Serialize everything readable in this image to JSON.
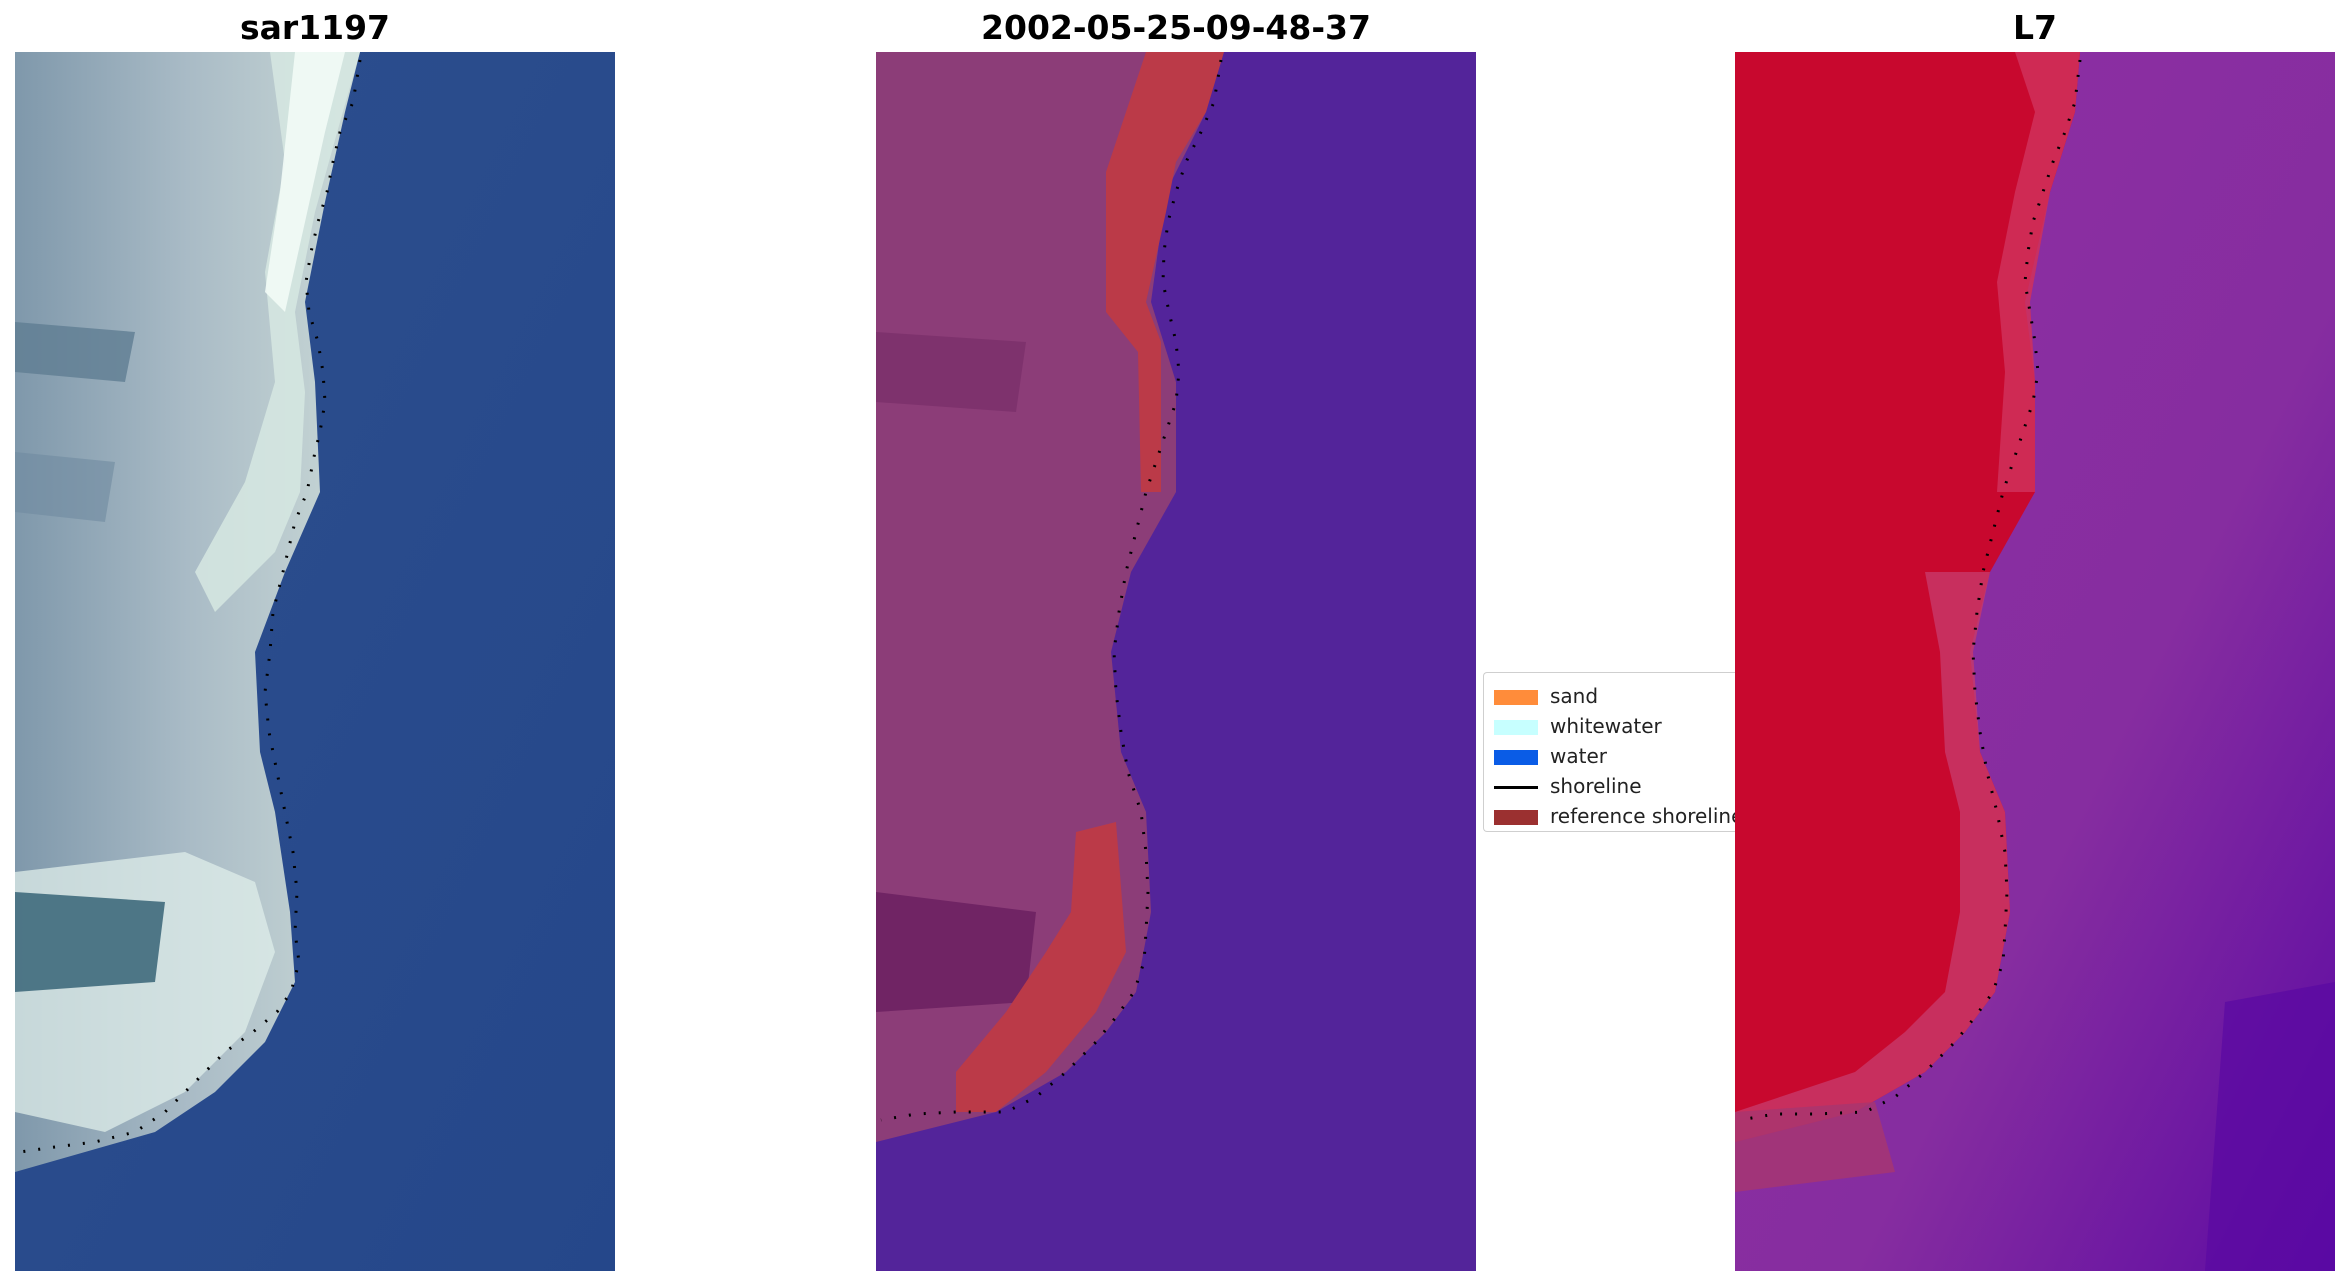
{
  "panels": [
    {
      "title": "sar1197"
    },
    {
      "title": "2002-05-25-09-48-37"
    },
    {
      "title": "L7"
    }
  ],
  "legend": {
    "items": [
      {
        "label": "sand",
        "color": "#ff8c3a",
        "kind": "patch"
      },
      {
        "label": "whitewater",
        "color": "#c7ffff",
        "kind": "patch"
      },
      {
        "label": "water",
        "color": "#0a5ce6",
        "kind": "patch"
      },
      {
        "label": "shoreline",
        "color": "#000000",
        "kind": "line"
      },
      {
        "label": "reference shoreline",
        "color": "#9b3030",
        "kind": "patch"
      }
    ]
  },
  "colors": {
    "rgb_water": "#27498a",
    "rgb_land": "#9fb2c2",
    "rgb_bright": "#e8f4ef",
    "class_water": "#53249a",
    "class_land": "#8c3d78",
    "class_sand": "#bb3a48",
    "ndwi_land": "#c8082e",
    "ndwi_water": "#8a2fa0",
    "ndwi_deep": "#5a08a2"
  }
}
